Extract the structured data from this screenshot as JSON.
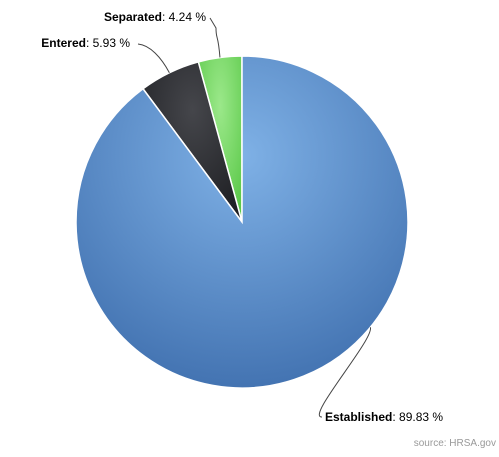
{
  "chart_data": {
    "type": "pie",
    "series": [
      {
        "slices": [
          {
            "name": "Separated",
            "value": 4.24,
            "value_label": "4.24 %",
            "color": "#7ed96b"
          },
          {
            "name": "Entered",
            "value": 5.93,
            "value_label": "5.93 %",
            "color": "#2e2f33"
          },
          {
            "name": "Established",
            "value": 89.83,
            "value_label": "89.83 %",
            "color": "#4a7fc0"
          }
        ]
      }
    ],
    "label_separator": ":",
    "credit": "source: HRSA.gov"
  }
}
